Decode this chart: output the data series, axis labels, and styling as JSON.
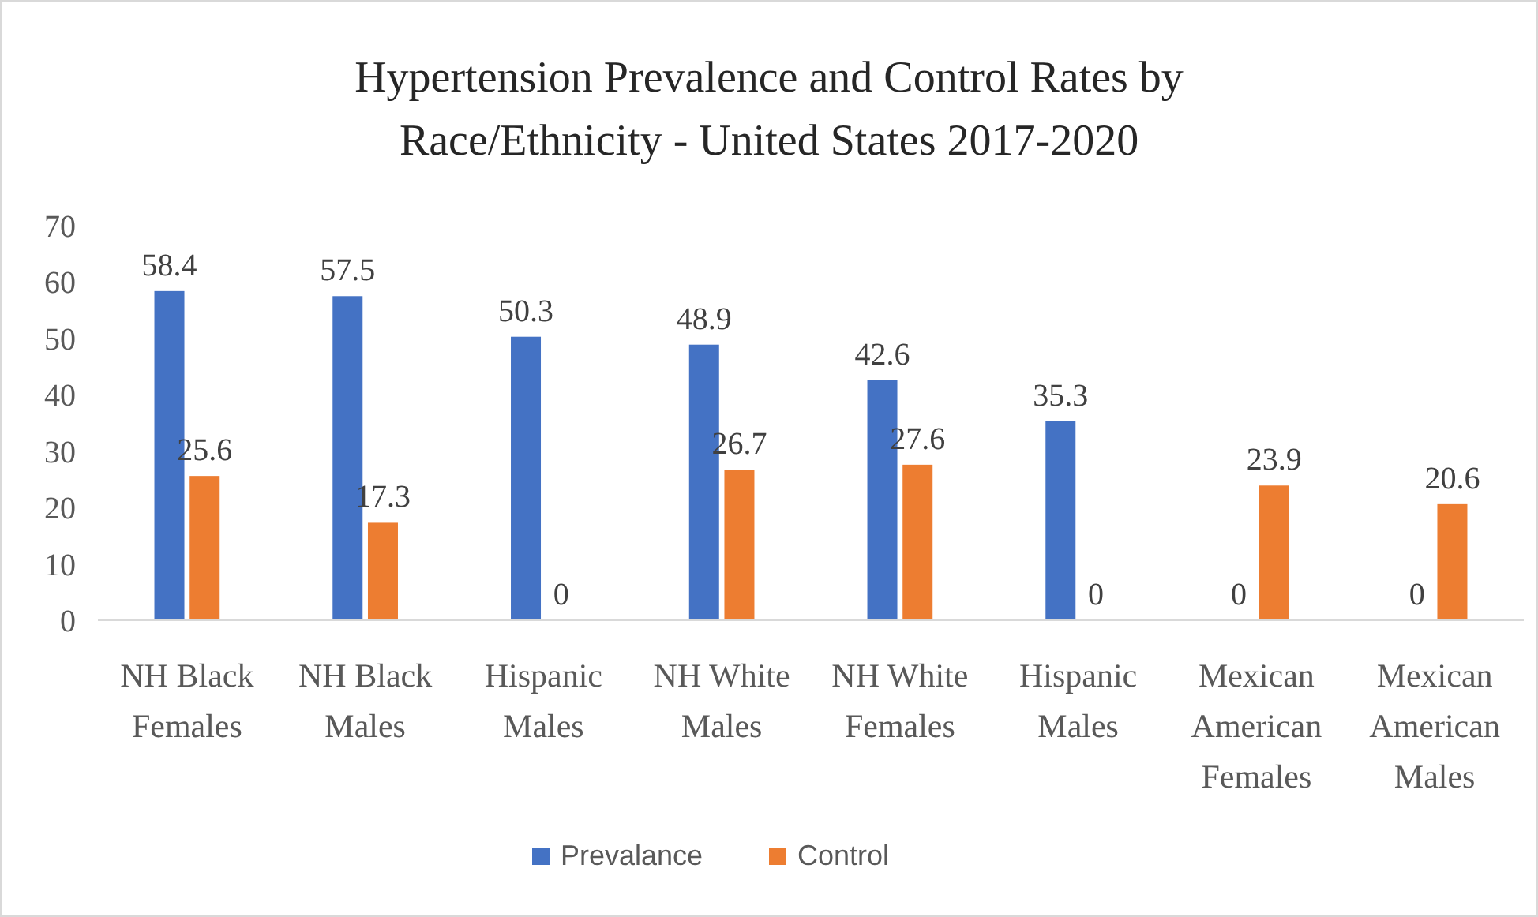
{
  "chart_data": {
    "type": "bar",
    "title": "Hypertension Prevalence and Control Rates by Race/Ethnicity - United States 2017-2020",
    "categories": [
      "NH Black Females",
      "NH Black Males",
      "Hispanic Males",
      "NH White Males",
      "NH White Females",
      "Hispanic Males",
      "Mexican American Females",
      "Mexican American Males"
    ],
    "series": [
      {
        "name": "Prevalance",
        "color": "#4472c4",
        "values": [
          58.4,
          57.5,
          50.3,
          48.9,
          42.6,
          35.3,
          0,
          0
        ]
      },
      {
        "name": "Control",
        "color": "#ed7d31",
        "values": [
          25.6,
          17.3,
          0,
          26.7,
          27.6,
          0,
          23.9,
          20.6
        ]
      }
    ],
    "ylim": [
      0,
      70
    ],
    "yticks": [
      0,
      10,
      20,
      30,
      40,
      50,
      60,
      70
    ],
    "grid": false,
    "data_labels": true,
    "legend": "bottom"
  }
}
